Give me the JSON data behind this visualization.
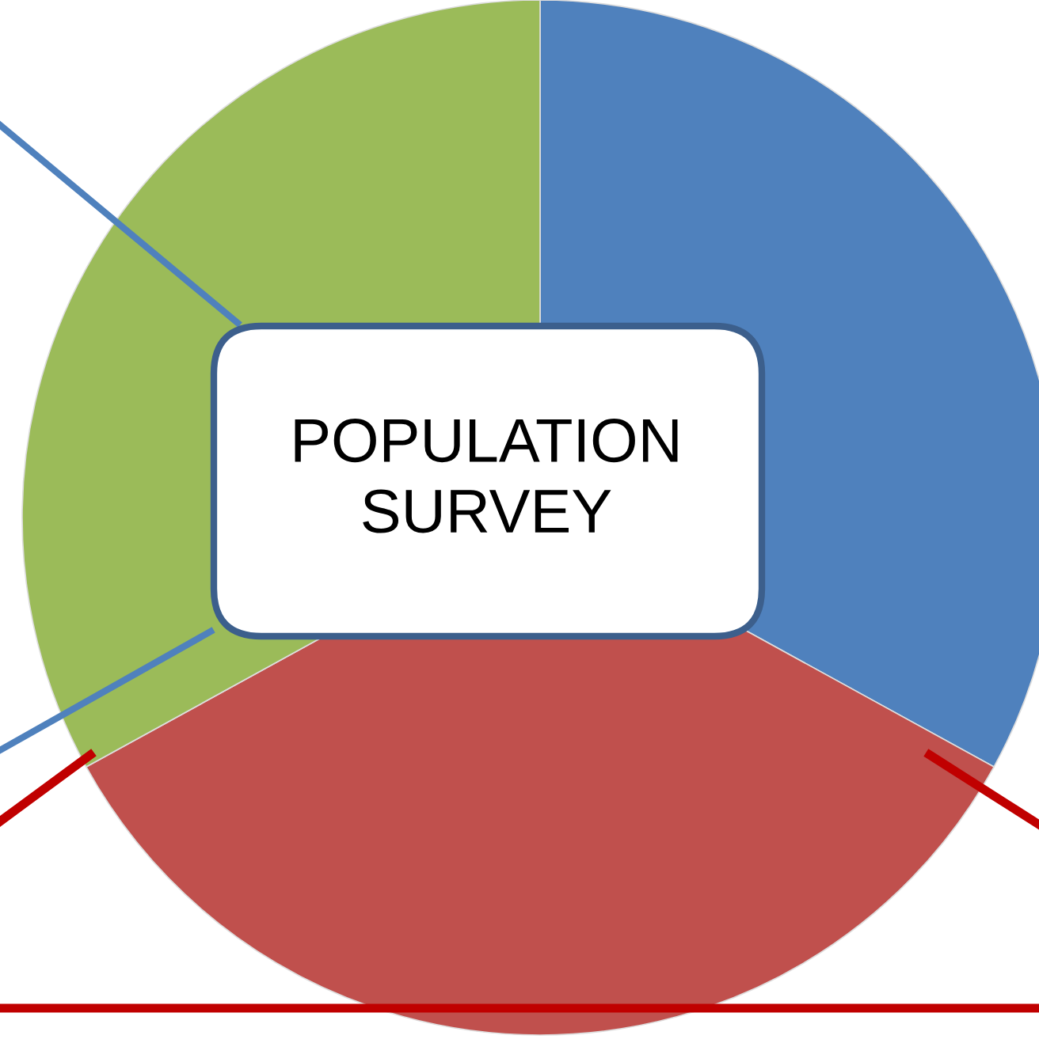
{
  "chart_data": {
    "type": "pie",
    "title": "POPULATION\nSURVEY",
    "categories": [
      null,
      null,
      null
    ],
    "values": [
      33,
      34,
      33
    ],
    "colors": [
      "#4f81bd",
      "#c0504d",
      "#9bbb59"
    ]
  }
}
